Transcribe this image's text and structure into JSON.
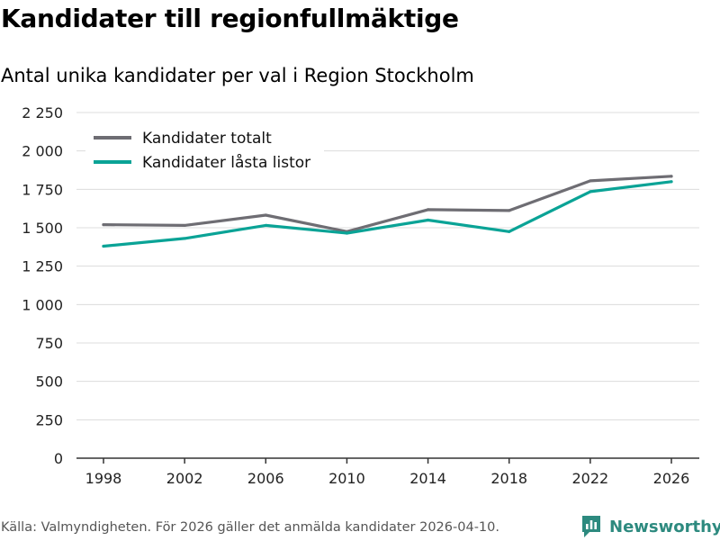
{
  "title": "Kandidater till regionfullmäktige",
  "subtitle": "Antal unika kandidater per val i Region Stockholm",
  "footer": "Källa: Valmyndigheten. För 2026 gäller det anmälda kandidater 2026-04-10.",
  "brand": {
    "name": "Newsworthy",
    "icon": "newsworthy-logo-icon",
    "color": "#2d8a7f"
  },
  "chart_data": {
    "type": "line",
    "title": "Kandidater till regionfullmäktige",
    "subtitle": "Antal unika kandidater per val i Region Stockholm",
    "xlabel": "",
    "ylabel": "",
    "x": [
      "1998",
      "2002",
      "2006",
      "2010",
      "2014",
      "2018",
      "2022",
      "2026"
    ],
    "ylim": [
      0,
      2250
    ],
    "yticks": [
      0,
      250,
      500,
      750,
      1000,
      1250,
      1500,
      1750,
      2000,
      2250
    ],
    "ytick_labels": [
      "0",
      "250",
      "500",
      "750",
      "1 000",
      "1 250",
      "1 500",
      "1 750",
      "2 000",
      "2 250"
    ],
    "grid": true,
    "legend_position": "top-left",
    "series": [
      {
        "name": "Kandidater totalt",
        "color": "#6e6d73",
        "values": [
          1520,
          1515,
          1582,
          1475,
          1618,
          1612,
          1805,
          1835
        ]
      },
      {
        "name": "Kandidater låsta listor",
        "color": "#0aa396",
        "values": [
          1380,
          1430,
          1515,
          1465,
          1550,
          1475,
          1735,
          1800
        ]
      }
    ]
  }
}
